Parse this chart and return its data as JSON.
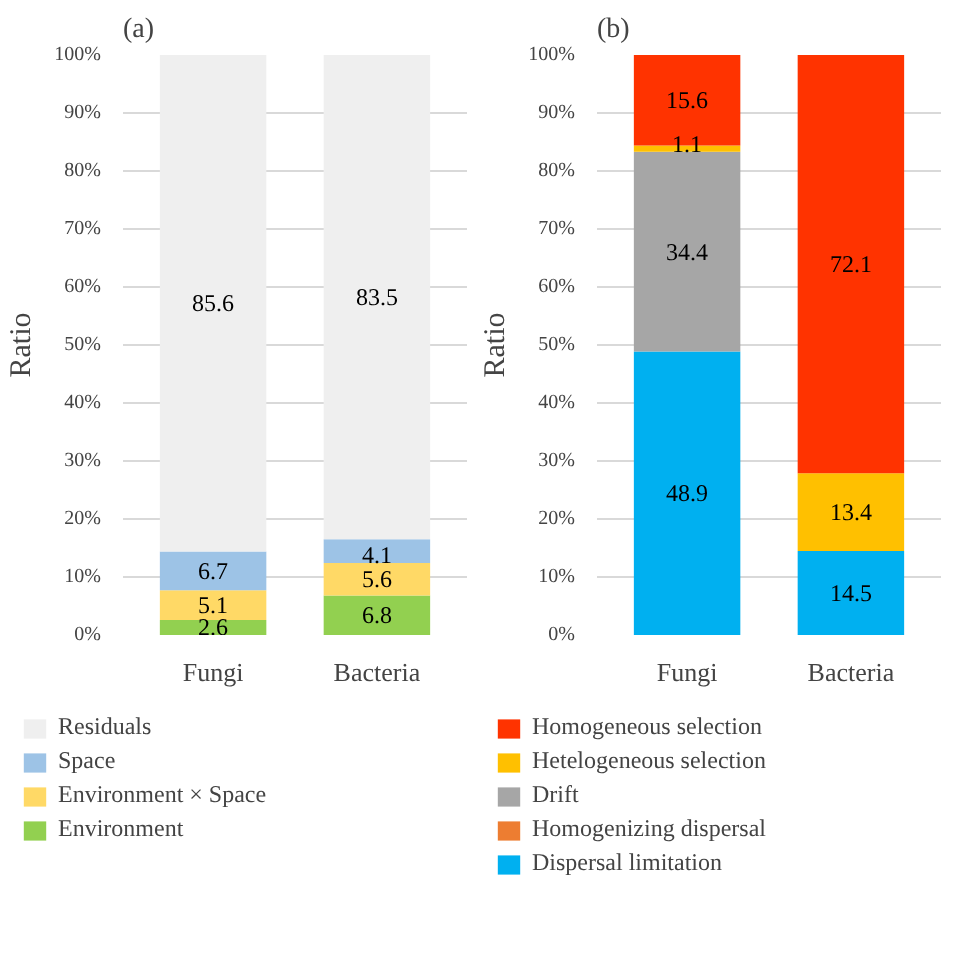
{
  "chart_data": [
    {
      "type": "bar",
      "stacked": true,
      "title": "(a)",
      "ylabel": "Ratio",
      "categories": [
        "Fungi",
        "Bacteria"
      ],
      "ylim": [
        0,
        100
      ],
      "yticks": [
        {
          "value": 0,
          "label": "0%"
        },
        {
          "value": 10,
          "label": "10%"
        },
        {
          "value": 20,
          "label": "20%"
        },
        {
          "value": 30,
          "label": "30%"
        },
        {
          "value": 40,
          "label": "40%"
        },
        {
          "value": 50,
          "label": "50%"
        },
        {
          "value": 60,
          "label": "60%"
        },
        {
          "value": 70,
          "label": "70%"
        },
        {
          "value": 80,
          "label": "80%"
        },
        {
          "value": 90,
          "label": "90%"
        },
        {
          "value": 100,
          "label": "100%"
        }
      ],
      "grid": "y",
      "legend": "bottom",
      "series": [
        {
          "name": "Environment",
          "color": "#92d050",
          "values": [
            2.6,
            6.8
          ],
          "value_labels": [
            "2.6",
            "6.8"
          ]
        },
        {
          "name": "Environment × Space",
          "color": "#ffd966",
          "values": [
            5.1,
            5.6
          ],
          "value_labels": [
            "5.1",
            "5.6"
          ]
        },
        {
          "name": "Space",
          "color": "#9dc3e6",
          "values": [
            6.7,
            4.1
          ],
          "value_labels": [
            "6.7",
            "4.1"
          ]
        },
        {
          "name": "Residuals",
          "color": "#efefef",
          "values": [
            85.6,
            83.5
          ],
          "value_labels": [
            "85.6",
            "83.5"
          ]
        }
      ]
    },
    {
      "type": "bar",
      "stacked": true,
      "title": "(b)",
      "ylabel": "Ratio",
      "categories": [
        "Fungi",
        "Bacteria"
      ],
      "ylim": [
        0,
        100
      ],
      "yticks": [
        {
          "value": 0,
          "label": "0%"
        },
        {
          "value": 10,
          "label": "10%"
        },
        {
          "value": 20,
          "label": "20%"
        },
        {
          "value": 30,
          "label": "30%"
        },
        {
          "value": 40,
          "label": "40%"
        },
        {
          "value": 50,
          "label": "50%"
        },
        {
          "value": 60,
          "label": "60%"
        },
        {
          "value": 70,
          "label": "70%"
        },
        {
          "value": 80,
          "label": "80%"
        },
        {
          "value": 90,
          "label": "90%"
        },
        {
          "value": 100,
          "label": "100%"
        }
      ],
      "grid": "y",
      "legend": "bottom",
      "series": [
        {
          "name": "Dispersal limitation",
          "color": "#00b0f0",
          "values": [
            48.9,
            14.5
          ],
          "value_labels": [
            "48.9",
            "14.5"
          ]
        },
        {
          "name": "Homogenizing dispersal",
          "color": "#ed7d31",
          "values": [
            0,
            0
          ],
          "value_labels": [
            null,
            null
          ]
        },
        {
          "name": "Drift",
          "color": "#a6a6a6",
          "values": [
            34.4,
            0
          ],
          "value_labels": [
            "34.4",
            null
          ]
        },
        {
          "name": "Hetelogeneous selection",
          "color": "#ffc000",
          "values": [
            1.1,
            13.4
          ],
          "value_labels": [
            "1.1",
            "13.4"
          ]
        },
        {
          "name": "Homogeneous selection",
          "color": "#ff3300",
          "values": [
            15.6,
            72.1
          ],
          "value_labels": [
            "15.6",
            "72.1"
          ]
        }
      ]
    }
  ]
}
